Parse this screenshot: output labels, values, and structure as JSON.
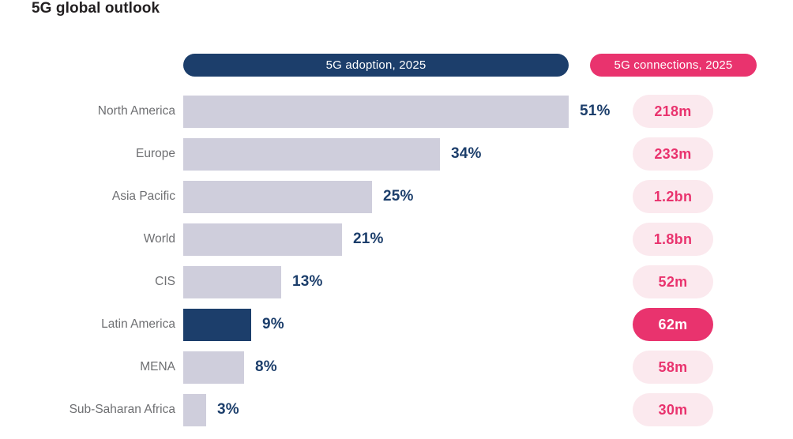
{
  "title": "5G global outlook",
  "legend": {
    "adoption_label": "5G adoption, 2025",
    "connections_label": "5G connections, 2025"
  },
  "colors": {
    "navy": "#1c3e6b",
    "pink": "#e9336e",
    "pink_light": "#fbe9ee",
    "bar_fill": "#cfcedc",
    "label_gray": "#6e6f72",
    "title_black": "#221f20"
  },
  "chart_data": {
    "type": "bar",
    "title": "5G global outlook",
    "orientation": "horizontal",
    "xlim": [
      0,
      51
    ],
    "grid": false,
    "legend_position": "top",
    "categories": [
      "North America",
      "Europe",
      "Asia Pacific",
      "World",
      "CIS",
      "Latin America",
      "MENA",
      "Sub-Saharan Africa"
    ],
    "series": [
      {
        "name": "5G adoption, 2025",
        "unit": "%",
        "values": [
          51,
          34,
          25,
          21,
          13,
          9,
          8,
          3
        ]
      },
      {
        "name": "5G connections, 2025",
        "values": [
          "218m",
          "233m",
          "1.2bn",
          "1.8bn",
          "52m",
          "62m",
          "58m",
          "30m"
        ]
      }
    ],
    "highlighted_region": "Latin America",
    "rows": [
      {
        "region": "North America",
        "adoption_pct": 51,
        "adoption_label": "51%",
        "connections": "218m",
        "highlight": false
      },
      {
        "region": "Europe",
        "adoption_pct": 34,
        "adoption_label": "34%",
        "connections": "233m",
        "highlight": false
      },
      {
        "region": "Asia Pacific",
        "adoption_pct": 25,
        "adoption_label": "25%",
        "connections": "1.2bn",
        "highlight": false
      },
      {
        "region": "World",
        "adoption_pct": 21,
        "adoption_label": "21%",
        "connections": "1.8bn",
        "highlight": false
      },
      {
        "region": "CIS",
        "adoption_pct": 13,
        "adoption_label": "13%",
        "connections": "52m",
        "highlight": false
      },
      {
        "region": "Latin America",
        "adoption_pct": 9,
        "adoption_label": "9%",
        "connections": "62m",
        "highlight": true
      },
      {
        "region": "MENA",
        "adoption_pct": 8,
        "adoption_label": "8%",
        "connections": "58m",
        "highlight": false
      },
      {
        "region": "Sub-Saharan Africa",
        "adoption_pct": 3,
        "adoption_label": "3%",
        "connections": "30m",
        "highlight": false
      }
    ]
  }
}
